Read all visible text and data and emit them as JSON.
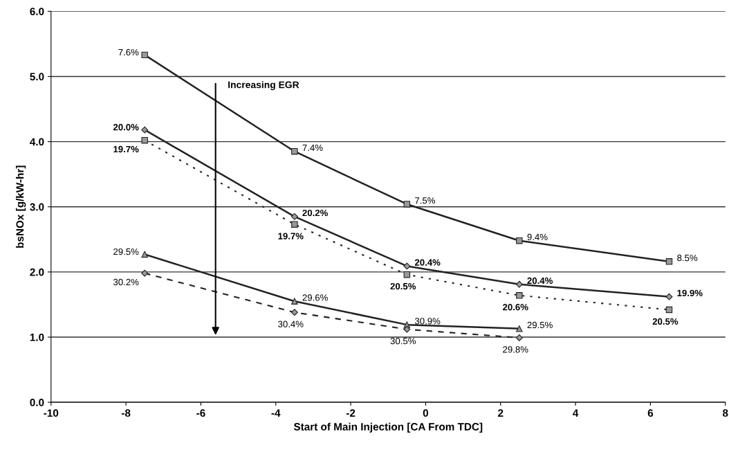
{
  "chart_data": {
    "type": "line",
    "xlabel": "Start of Main Injection [CA From TDC]",
    "ylabel": "bsNOx [g/kW-hr]",
    "x": [
      -7.5,
      -3.5,
      -0.5,
      2.5,
      6.5
    ],
    "series": [
      {
        "color": "#222222",
        "marker": "square",
        "line_style": "solid",
        "values": [
          5.33,
          3.85,
          3.04,
          2.48,
          2.16
        ]
      },
      {
        "color": "#222222",
        "marker": "diamond",
        "line_style": "solid",
        "values": [
          4.18,
          2.85,
          2.09,
          1.81,
          1.62
        ]
      },
      {
        "color": "#222222",
        "marker": "square",
        "line_style": "dotted",
        "values": [
          4.02,
          2.73,
          1.96,
          1.64,
          1.42
        ]
      },
      {
        "color": "#222222",
        "marker": "triangle",
        "line_style": "solid",
        "values": [
          2.27,
          1.55,
          1.19,
          1.13,
          null
        ]
      },
      {
        "color": "#222222",
        "marker": "diamond",
        "line_style": "dashed",
        "values": [
          1.98,
          1.38,
          1.12,
          0.99,
          null
        ]
      }
    ],
    "annotations": [
      "Increasing EGR",
      {
        "text": "7.6%",
        "x": -7.5,
        "y": 5.33
      },
      {
        "text": "7.4%",
        "x": -3.5,
        "y": 3.85
      },
      {
        "text": "7.5%",
        "x": -0.5,
        "y": 3.04
      },
      {
        "text": "9.4%",
        "x": 2.5,
        "y": 2.48
      },
      {
        "text": "8.5%",
        "x": 6.5,
        "y": 2.16
      },
      {
        "text": "20.0%",
        "x": -7.5,
        "y": 4.18
      },
      {
        "text": "20.2%",
        "x": -3.5,
        "y": 2.85
      },
      {
        "text": "20.4%",
        "x": -0.5,
        "y": 2.09
      },
      {
        "text": "20.4%",
        "x": 2.5,
        "y": 1.81
      },
      {
        "text": "19.9%",
        "x": 6.5,
        "y": 1.62
      },
      {
        "text": "19.7%",
        "x": -7.5,
        "y": 4.02
      },
      {
        "text": "19.7%",
        "x": -3.5,
        "y": 2.73
      },
      {
        "text": "20.5%",
        "x": -0.5,
        "y": 1.96
      },
      {
        "text": "20.6%",
        "x": 2.5,
        "y": 1.64
      },
      {
        "text": "20.5%",
        "x": 6.5,
        "y": 1.42
      },
      {
        "text": "29.5%",
        "x": -7.5,
        "y": 2.27
      },
      {
        "text": "29.6%",
        "x": -3.5,
        "y": 1.55
      },
      {
        "text": "30.9%",
        "x": -0.5,
        "y": 1.19
      },
      {
        "text": "29.5%",
        "x": 2.5,
        "y": 1.13
      },
      {
        "text": "30.2%",
        "x": -7.5,
        "y": 1.98
      },
      {
        "text": "30.4%",
        "x": -3.5,
        "y": 1.38
      },
      {
        "text": "30.5%",
        "x": -0.5,
        "y": 1.12
      },
      {
        "text": "29.8%",
        "x": 2.5,
        "y": 0.99
      }
    ],
    "xlim": [
      -10,
      8
    ],
    "xticks": [
      -10,
      -8,
      -6,
      -4,
      -2,
      0,
      2,
      4,
      6,
      8
    ],
    "ylim": [
      0,
      6
    ],
    "yticks": [
      {
        "value": 0,
        "label": "0.0"
      },
      {
        "value": 1,
        "label": "1.0"
      },
      {
        "value": 2,
        "label": "2.0"
      },
      {
        "value": 3,
        "label": "3.0"
      },
      {
        "value": 4,
        "label": "4.0"
      },
      {
        "value": 5,
        "label": "5.0"
      },
      {
        "value": 6,
        "label": "6.0"
      }
    ],
    "grid": "y",
    "legend": false
  }
}
